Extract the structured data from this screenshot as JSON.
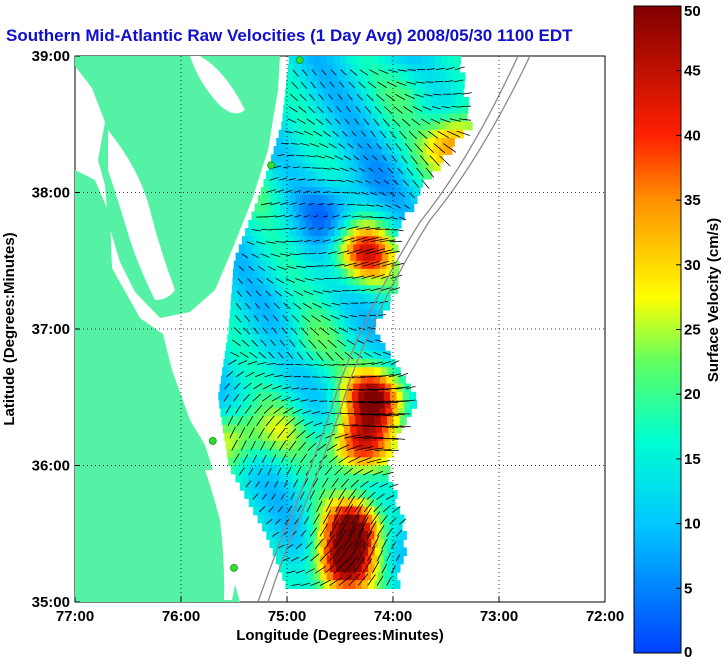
{
  "chart_data": {
    "type": "heatmap",
    "title": "Southern Mid-Atlantic Raw Velocities (1 Day Avg) 2008/05/30 1100 EDT",
    "xlabel": "Longitude (Degrees:Minutes)",
    "ylabel": "Latitude (Degrees:Minutes)",
    "xlim": [
      -77,
      -72
    ],
    "ylim": [
      35,
      39
    ],
    "x_ticks": [
      {
        "value": -77,
        "label": "77:00"
      },
      {
        "value": -76,
        "label": "76:00"
      },
      {
        "value": -75,
        "label": "75:00"
      },
      {
        "value": -74,
        "label": "74:00"
      },
      {
        "value": -73,
        "label": "73:00"
      },
      {
        "value": -72,
        "label": "72:00"
      }
    ],
    "y_ticks": [
      {
        "value": 35,
        "label": "35:00"
      },
      {
        "value": 36,
        "label": "36:00"
      },
      {
        "value": 37,
        "label": "37:00"
      },
      {
        "value": 38,
        "label": "38:00"
      },
      {
        "value": 39,
        "label": "39:00"
      }
    ],
    "grid": true,
    "colorbar": {
      "label": "Surface Velocity (cm/s)",
      "min": 0,
      "max": 50,
      "ticks": [
        0,
        5,
        10,
        15,
        20,
        25,
        30,
        35,
        40,
        45,
        50
      ],
      "position": "right"
    },
    "colors": {
      "land": "#55f2a6",
      "title": "#1010cc",
      "grid": "#000000",
      "station": "#33dd33",
      "bathymetry": "#8a8a8a"
    },
    "stations": [
      {
        "lon": -74.88,
        "lat": 38.97
      },
      {
        "lon": -75.15,
        "lat": 38.2
      },
      {
        "lon": -75.7,
        "lat": 36.18
      },
      {
        "lon": -75.5,
        "lat": 35.25
      }
    ],
    "velocity_blobs": [
      {
        "lon": -73.45,
        "lat": 38.35,
        "speed": 40
      },
      {
        "lon": -74.3,
        "lat": 37.55,
        "speed": 44
      },
      {
        "lon": -74.2,
        "lat": 36.5,
        "speed": 50
      },
      {
        "lon": -74.35,
        "lat": 36.15,
        "speed": 45
      },
      {
        "lon": -74.4,
        "lat": 35.55,
        "speed": 50
      },
      {
        "lon": -74.5,
        "lat": 35.25,
        "speed": 48
      },
      {
        "lon": -75.55,
        "lat": 36.2,
        "speed": 30
      },
      {
        "lon": -75.1,
        "lat": 36.25,
        "speed": 24
      },
      {
        "lon": -74.8,
        "lat": 36.9,
        "speed": 22
      },
      {
        "lon": -75.25,
        "lat": 38.05,
        "speed": 20
      },
      {
        "lon": -74.2,
        "lat": 38.1,
        "speed": 12
      },
      {
        "lon": -74.6,
        "lat": 37.85,
        "speed": 6
      },
      {
        "lon": -75.15,
        "lat": 37.45,
        "speed": 16
      },
      {
        "lon": -73.85,
        "lat": 38.75,
        "speed": 22
      }
    ],
    "background_speed": 15
  }
}
